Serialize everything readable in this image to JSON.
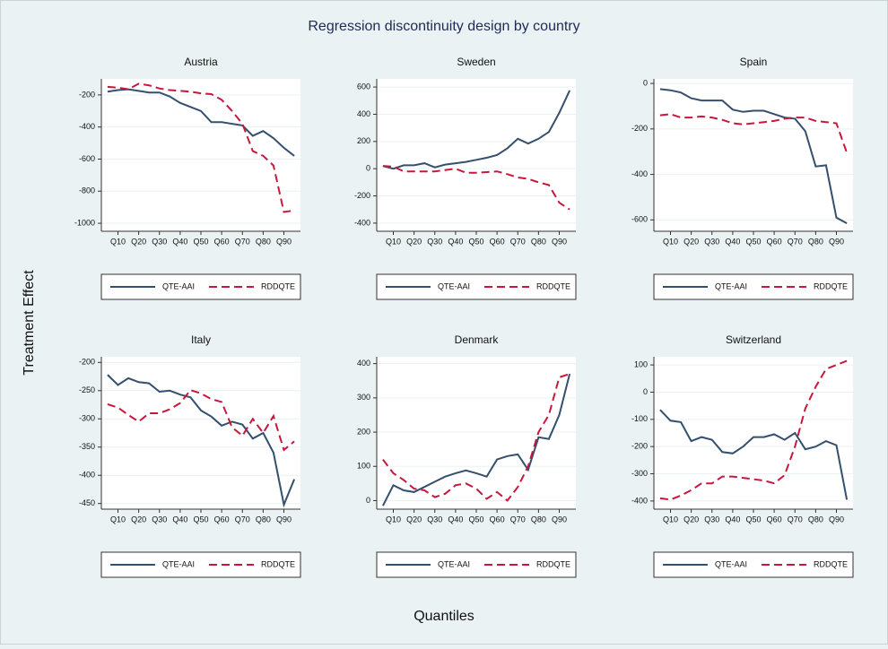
{
  "title": "Regression discontinuity design by country",
  "ylabel": "Treatment Effect",
  "xlabel": "Quantiles",
  "chart_data": [
    {
      "type": "line",
      "title": "Austria",
      "x": [
        5,
        10,
        15,
        20,
        25,
        30,
        35,
        40,
        45,
        50,
        55,
        60,
        65,
        70,
        75,
        80,
        85,
        90,
        95
      ],
      "xlim": [
        2,
        98
      ],
      "xticks": [
        {
          "value": 10,
          "label": "Q10"
        },
        {
          "value": 20,
          "label": "Q20"
        },
        {
          "value": 30,
          "label": "Q30"
        },
        {
          "value": 40,
          "label": "Q40"
        },
        {
          "value": 50,
          "label": "Q50"
        },
        {
          "value": 60,
          "label": "Q60"
        },
        {
          "value": 70,
          "label": "Q70"
        },
        {
          "value": 80,
          "label": "Q80"
        },
        {
          "value": 90,
          "label": "Q90"
        }
      ],
      "ylim": [
        -1050,
        -100
      ],
      "yticks": [
        -1000,
        -800,
        -600,
        -400,
        -200
      ],
      "grid": true,
      "series": [
        {
          "name": "QTE-AAI",
          "color": "#34506e",
          "line_style": "solid",
          "values": [
            -180,
            -170,
            -165,
            -175,
            -185,
            -185,
            -210,
            -250,
            -275,
            -300,
            -370,
            -370,
            -380,
            -390,
            -455,
            -425,
            -470,
            -530,
            -580
          ]
        },
        {
          "name": "RDDQTE",
          "color": "#c8173c",
          "line_style": "dashed",
          "values": [
            -150,
            -155,
            -165,
            -130,
            -140,
            -160,
            -170,
            -175,
            -180,
            -190,
            -195,
            -230,
            -300,
            -380,
            -550,
            -580,
            -640,
            -930,
            -920
          ]
        }
      ]
    },
    {
      "type": "line",
      "title": "Sweden",
      "x": [
        5,
        10,
        15,
        20,
        25,
        30,
        35,
        40,
        45,
        50,
        55,
        60,
        65,
        70,
        75,
        80,
        85,
        90,
        95
      ],
      "xlim": [
        2,
        98
      ],
      "xticks": [
        {
          "value": 10,
          "label": "Q10"
        },
        {
          "value": 20,
          "label": "Q20"
        },
        {
          "value": 30,
          "label": "Q30"
        },
        {
          "value": 40,
          "label": "Q40"
        },
        {
          "value": 50,
          "label": "Q50"
        },
        {
          "value": 60,
          "label": "Q60"
        },
        {
          "value": 70,
          "label": "Q70"
        },
        {
          "value": 80,
          "label": "Q80"
        },
        {
          "value": 90,
          "label": "Q90"
        }
      ],
      "ylim": [
        -460,
        660
      ],
      "yticks": [
        -400,
        -200,
        0,
        200,
        400,
        600
      ],
      "grid": true,
      "series": [
        {
          "name": "QTE-AAI",
          "color": "#34506e",
          "line_style": "solid",
          "values": [
            20,
            0,
            25,
            25,
            40,
            10,
            30,
            40,
            50,
            65,
            80,
            100,
            150,
            220,
            185,
            220,
            270,
            410,
            575
          ]
        },
        {
          "name": "RDDQTE",
          "color": "#c8173c",
          "line_style": "dashed",
          "values": [
            20,
            15,
            -20,
            -20,
            -20,
            -20,
            -10,
            0,
            -30,
            -30,
            -25,
            -20,
            -40,
            -65,
            -75,
            -100,
            -120,
            -250,
            -300
          ]
        }
      ]
    },
    {
      "type": "line",
      "title": "Spain",
      "x": [
        5,
        10,
        15,
        20,
        25,
        30,
        35,
        40,
        45,
        50,
        55,
        60,
        65,
        70,
        75,
        80,
        85,
        90,
        95
      ],
      "xlim": [
        2,
        98
      ],
      "xticks": [
        {
          "value": 10,
          "label": "Q10"
        },
        {
          "value": 20,
          "label": "Q20"
        },
        {
          "value": 30,
          "label": "Q30"
        },
        {
          "value": 40,
          "label": "Q40"
        },
        {
          "value": 50,
          "label": "Q50"
        },
        {
          "value": 60,
          "label": "Q60"
        },
        {
          "value": 70,
          "label": "Q70"
        },
        {
          "value": 80,
          "label": "Q80"
        },
        {
          "value": 90,
          "label": "Q90"
        }
      ],
      "ylim": [
        -650,
        20
      ],
      "yticks": [
        -600,
        -400,
        -200,
        0
      ],
      "grid": true,
      "series": [
        {
          "name": "QTE-AAI",
          "color": "#34506e",
          "line_style": "solid",
          "values": [
            -25,
            -30,
            -40,
            -65,
            -75,
            -75,
            -75,
            -115,
            -125,
            -120,
            -120,
            -135,
            -150,
            -155,
            -210,
            -365,
            -360,
            -590,
            -615
          ]
        },
        {
          "name": "RDDQTE",
          "color": "#c8173c",
          "line_style": "dashed",
          "values": [
            -140,
            -135,
            -150,
            -150,
            -145,
            -150,
            -160,
            -175,
            -180,
            -175,
            -170,
            -165,
            -155,
            -150,
            -150,
            -165,
            -170,
            -175,
            -305
          ]
        }
      ]
    },
    {
      "type": "line",
      "title": "Italy",
      "x": [
        5,
        10,
        15,
        20,
        25,
        30,
        35,
        40,
        45,
        50,
        55,
        60,
        65,
        70,
        75,
        80,
        85,
        90,
        95
      ],
      "xlim": [
        2,
        98
      ],
      "xticks": [
        {
          "value": 10,
          "label": "Q10"
        },
        {
          "value": 20,
          "label": "Q20"
        },
        {
          "value": 30,
          "label": "Q30"
        },
        {
          "value": 40,
          "label": "Q40"
        },
        {
          "value": 50,
          "label": "Q50"
        },
        {
          "value": 60,
          "label": "Q60"
        },
        {
          "value": 70,
          "label": "Q70"
        },
        {
          "value": 80,
          "label": "Q80"
        },
        {
          "value": 90,
          "label": "Q90"
        }
      ],
      "ylim": [
        -460,
        -190
      ],
      "yticks": [
        -200,
        -250,
        -300,
        -350,
        -400,
        -450
      ],
      "grid": true,
      "series": [
        {
          "name": "QTE-AAI",
          "color": "#34506e",
          "line_style": "solid",
          "values": [
            -222,
            -240,
            -228,
            -235,
            -237,
            -252,
            -250,
            -257,
            -262,
            -285,
            -296,
            -312,
            -305,
            -310,
            -335,
            -325,
            -360,
            -452,
            -407
          ]
        },
        {
          "name": "RDDQTE",
          "color": "#c8173c",
          "line_style": "dashed",
          "values": [
            -274,
            -280,
            -293,
            -305,
            -290,
            -290,
            -283,
            -272,
            -249,
            -255,
            -265,
            -270,
            -315,
            -330,
            -300,
            -325,
            -295,
            -355,
            -340
          ]
        }
      ]
    },
    {
      "type": "line",
      "title": "Denmark",
      "x": [
        5,
        10,
        15,
        20,
        25,
        30,
        35,
        40,
        45,
        50,
        55,
        60,
        65,
        70,
        75,
        80,
        85,
        90,
        95
      ],
      "xlim": [
        2,
        98
      ],
      "xticks": [
        {
          "value": 10,
          "label": "Q10"
        },
        {
          "value": 20,
          "label": "Q20"
        },
        {
          "value": 30,
          "label": "Q30"
        },
        {
          "value": 40,
          "label": "Q40"
        },
        {
          "value": 50,
          "label": "Q50"
        },
        {
          "value": 60,
          "label": "Q60"
        },
        {
          "value": 70,
          "label": "Q70"
        },
        {
          "value": 80,
          "label": "Q80"
        },
        {
          "value": 90,
          "label": "Q90"
        }
      ],
      "ylim": [
        -25,
        420
      ],
      "yticks": [
        0,
        100,
        200,
        300,
        400
      ],
      "grid": true,
      "series": [
        {
          "name": "QTE-AAI",
          "color": "#34506e",
          "line_style": "solid",
          "values": [
            -15,
            45,
            30,
            25,
            40,
            55,
            70,
            80,
            88,
            80,
            70,
            120,
            130,
            135,
            90,
            185,
            180,
            250,
            370
          ]
        },
        {
          "name": "RDDQTE",
          "color": "#c8173c",
          "line_style": "dashed",
          "values": [
            120,
            80,
            60,
            35,
            30,
            10,
            20,
            45,
            50,
            35,
            5,
            25,
            0,
            40,
            100,
            200,
            250,
            360,
            370
          ]
        }
      ]
    },
    {
      "type": "line",
      "title": "Switzerland",
      "x": [
        5,
        10,
        15,
        20,
        25,
        30,
        35,
        40,
        45,
        50,
        55,
        60,
        65,
        70,
        75,
        80,
        85,
        90,
        95
      ],
      "xlim": [
        2,
        98
      ],
      "xticks": [
        {
          "value": 10,
          "label": "Q10"
        },
        {
          "value": 20,
          "label": "Q20"
        },
        {
          "value": 30,
          "label": "Q30"
        },
        {
          "value": 40,
          "label": "Q40"
        },
        {
          "value": 50,
          "label": "Q50"
        },
        {
          "value": 60,
          "label": "Q60"
        },
        {
          "value": 70,
          "label": "Q70"
        },
        {
          "value": 80,
          "label": "Q80"
        },
        {
          "value": 90,
          "label": "Q90"
        }
      ],
      "ylim": [
        -430,
        130
      ],
      "yticks": [
        -400,
        -300,
        -200,
        -100,
        0,
        100
      ],
      "grid": true,
      "series": [
        {
          "name": "QTE-AAI",
          "color": "#34506e",
          "line_style": "solid",
          "values": [
            -65,
            -105,
            -110,
            -180,
            -165,
            -175,
            -220,
            -225,
            -200,
            -165,
            -165,
            -155,
            -175,
            -150,
            -210,
            -200,
            -180,
            -195,
            -395
          ]
        },
        {
          "name": "RDDQTE",
          "color": "#c8173c",
          "line_style": "dashed",
          "values": [
            -390,
            -395,
            -380,
            -360,
            -335,
            -335,
            -310,
            -310,
            -315,
            -320,
            -325,
            -335,
            -305,
            -200,
            -60,
            20,
            85,
            100,
            115
          ]
        }
      ]
    }
  ]
}
